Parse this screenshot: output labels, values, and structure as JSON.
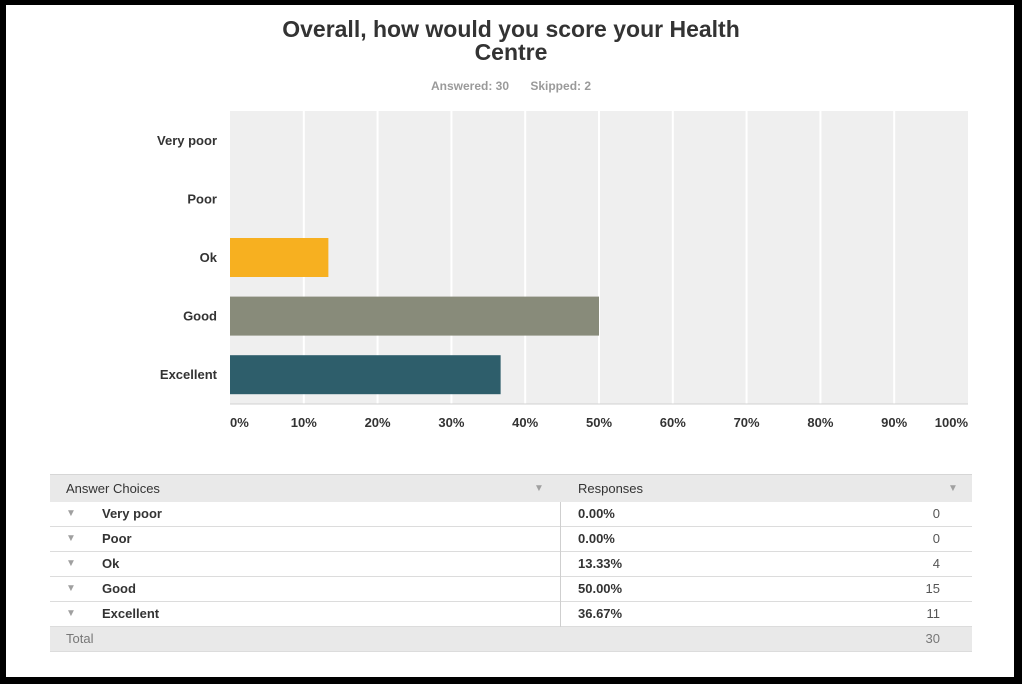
{
  "chart_data": {
    "type": "bar",
    "orientation": "horizontal",
    "title": "Overall, how would you score your Health Centre",
    "title_lines": [
      "Overall, how would you score your Health",
      "Centre"
    ],
    "categories": [
      "Very poor",
      "Poor",
      "Ok",
      "Good",
      "Excellent"
    ],
    "values": [
      0,
      0,
      13.33,
      50.0,
      36.67
    ],
    "bar_colors": [
      "#f7b020",
      "#f7b020",
      "#f7b020",
      "#888b7a",
      "#2e5e6b"
    ],
    "xlim": [
      0,
      100
    ],
    "xticks": [
      "0%",
      "10%",
      "20%",
      "30%",
      "40%",
      "50%",
      "60%",
      "70%",
      "80%",
      "90%",
      "100%"
    ],
    "grid": true,
    "legend": "none"
  },
  "summary": {
    "answered": "Answered: 30",
    "skipped": "Skipped: 2"
  },
  "table": {
    "headers": {
      "choices": "Answer Choices",
      "responses": "Responses"
    },
    "rows": [
      {
        "choice": "Very poor",
        "percent": "0.00%",
        "count": "0"
      },
      {
        "choice": "Poor",
        "percent": "0.00%",
        "count": "0"
      },
      {
        "choice": "Ok",
        "percent": "13.33%",
        "count": "4"
      },
      {
        "choice": "Good",
        "percent": "50.00%",
        "count": "15"
      },
      {
        "choice": "Excellent",
        "percent": "36.67%",
        "count": "11"
      }
    ],
    "total_label": "Total",
    "total_value": "30"
  },
  "colors": {
    "plot_bg": "#efefef",
    "grid": "#ffffff",
    "ok": "#f7b020",
    "good": "#888b7a",
    "excellent": "#2e5e6b"
  }
}
